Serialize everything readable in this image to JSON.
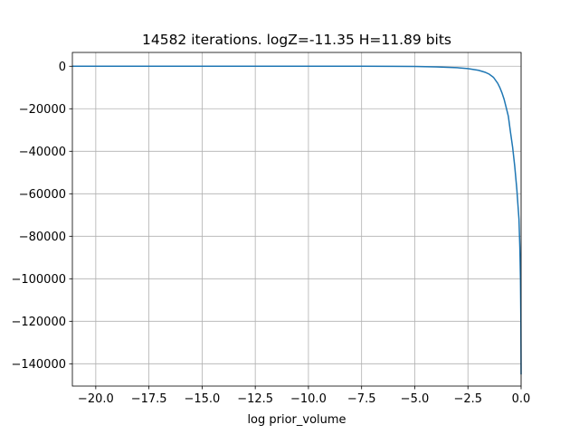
{
  "chart_data": {
    "type": "line",
    "title": "14582 iterations. logZ=-11.35 H=11.89 bits",
    "xlabel": "log prior_volume",
    "ylabel": "",
    "xlim": [
      -21.1,
      0.0
    ],
    "ylim": [
      -150500,
      6500
    ],
    "grid": true,
    "x_ticks": [
      -20.0,
      -17.5,
      -15.0,
      -12.5,
      -10.0,
      -7.5,
      -5.0,
      -2.5,
      0.0
    ],
    "x_tick_labels": [
      "−20.0",
      "−17.5",
      "−15.0",
      "−12.5",
      "−10.0",
      "−7.5",
      "−5.0",
      "−2.5",
      "0.0"
    ],
    "y_ticks": [
      0,
      -20000,
      -40000,
      -60000,
      -80000,
      -100000,
      -120000,
      -140000
    ],
    "y_tick_labels": [
      "0",
      "−20000",
      "−40000",
      "−60000",
      "−80000",
      "−100000",
      "−120000",
      "−140000"
    ],
    "line_color": "#1f77b4",
    "series": [
      {
        "x": [
          -21.1,
          -20.0,
          -17.5,
          -15.0,
          -12.5,
          -10.0,
          -7.5,
          -6.0,
          -5.0,
          -4.0,
          -3.0,
          -2.5,
          -2.0,
          -1.7,
          -1.5,
          -1.3,
          -1.1,
          -1.0,
          -0.9,
          -0.8,
          -0.7,
          -0.6,
          -0.5,
          -0.4,
          -0.3,
          -0.2,
          -0.15,
          -0.1,
          -0.06,
          -0.03,
          -0.01,
          0.0
        ],
        "y": [
          0,
          0,
          0,
          0,
          0,
          0,
          -10,
          -40,
          -120,
          -300,
          -700,
          -1100,
          -1900,
          -2800,
          -3700,
          -5200,
          -8000,
          -10000,
          -12500,
          -15500,
          -19500,
          -23500,
          -31000,
          -38000,
          -47000,
          -58000,
          -65000,
          -72000,
          -85000,
          -100000,
          -120000,
          -145000
        ]
      }
    ]
  }
}
